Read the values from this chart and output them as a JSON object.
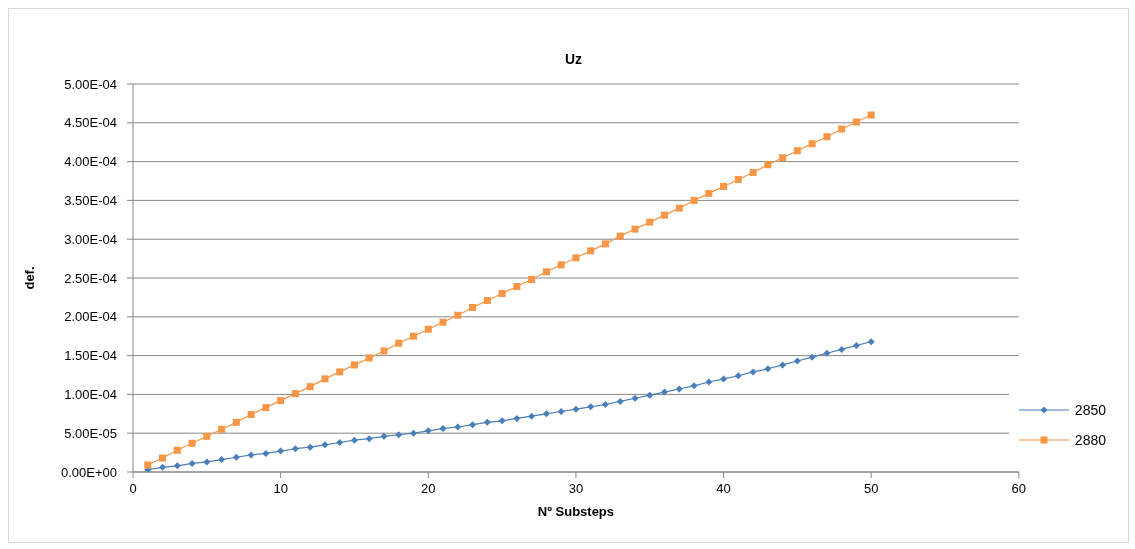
{
  "chart_data": {
    "type": "line",
    "title": "Uz",
    "xlabel": "Nº Substeps",
    "ylabel": "def.",
    "x": [
      1,
      2,
      3,
      4,
      5,
      6,
      7,
      8,
      9,
      10,
      11,
      12,
      13,
      14,
      15,
      16,
      17,
      18,
      19,
      20,
      21,
      22,
      23,
      24,
      25,
      26,
      27,
      28,
      29,
      30,
      31,
      32,
      33,
      34,
      35,
      36,
      37,
      38,
      39,
      40,
      41,
      42,
      43,
      44,
      45,
      46,
      47,
      48,
      49,
      50
    ],
    "series": [
      {
        "name": "2850",
        "color": "#4a7ebb",
        "marker": "diamond",
        "values": [
          3e-06,
          6e-06,
          8e-06,
          1.1e-05,
          1.3e-05,
          1.6e-05,
          1.9e-05,
          2.2e-05,
          2.4e-05,
          2.7e-05,
          3e-05,
          3.2e-05,
          3.5e-05,
          3.8e-05,
          4.1e-05,
          4.3e-05,
          4.6e-05,
          4.8e-05,
          5e-05,
          5.3e-05,
          5.6e-05,
          5.8e-05,
          6.1e-05,
          6.4e-05,
          6.6e-05,
          6.9e-05,
          7.2e-05,
          7.5e-05,
          7.8e-05,
          8.1e-05,
          8.4e-05,
          8.7e-05,
          9.1e-05,
          9.5e-05,
          9.9e-05,
          0.000103,
          0.000107,
          0.000111,
          0.000116,
          0.00012,
          0.000124,
          0.000129,
          0.000133,
          0.000138,
          0.000143,
          0.000148,
          0.000153,
          0.000158,
          0.000163,
          0.000168
        ]
      },
      {
        "name": "2880",
        "color": "#f79646",
        "marker": "square",
        "values": [
          9e-06,
          1.8e-05,
          2.8e-05,
          3.7e-05,
          4.6e-05,
          5.5e-05,
          6.4e-05,
          7.4e-05,
          8.3e-05,
          9.2e-05,
          0.000101,
          0.00011,
          0.00012,
          0.000129,
          0.000138,
          0.000147,
          0.000156,
          0.000166,
          0.000175,
          0.000184,
          0.000193,
          0.000202,
          0.000212,
          0.000221,
          0.00023,
          0.000239,
          0.000248,
          0.000258,
          0.000267,
          0.000276,
          0.000285,
          0.000294,
          0.000304,
          0.000313,
          0.000322,
          0.000331,
          0.00034,
          0.00035,
          0.000359,
          0.000368,
          0.000377,
          0.000386,
          0.000396,
          0.000405,
          0.000414,
          0.000423,
          0.000432,
          0.000442,
          0.000451,
          0.00046
        ]
      }
    ],
    "xlim": [
      0,
      60
    ],
    "xticks": [
      0,
      10,
      20,
      30,
      40,
      50,
      60
    ],
    "ylim": [
      0,
      0.0005
    ],
    "yticks": [
      {
        "value": 0,
        "label": "0.00E+00"
      },
      {
        "value": 5e-05,
        "label": "5.00E-05"
      },
      {
        "value": 0.0001,
        "label": "1.00E-04"
      },
      {
        "value": 0.00015,
        "label": "1.50E-04"
      },
      {
        "value": 0.0002,
        "label": "2.00E-04"
      },
      {
        "value": 0.00025,
        "label": "2.50E-04"
      },
      {
        "value": 0.0003,
        "label": "3.00E-04"
      },
      {
        "value": 0.00035,
        "label": "3.50E-04"
      },
      {
        "value": 0.0004,
        "label": "4.00E-04"
      },
      {
        "value": 0.00045,
        "label": "4.50E-04"
      },
      {
        "value": 0.0005,
        "label": "5.00E-04"
      }
    ],
    "grid": "y",
    "legend": "right",
    "line_style": "solid"
  }
}
